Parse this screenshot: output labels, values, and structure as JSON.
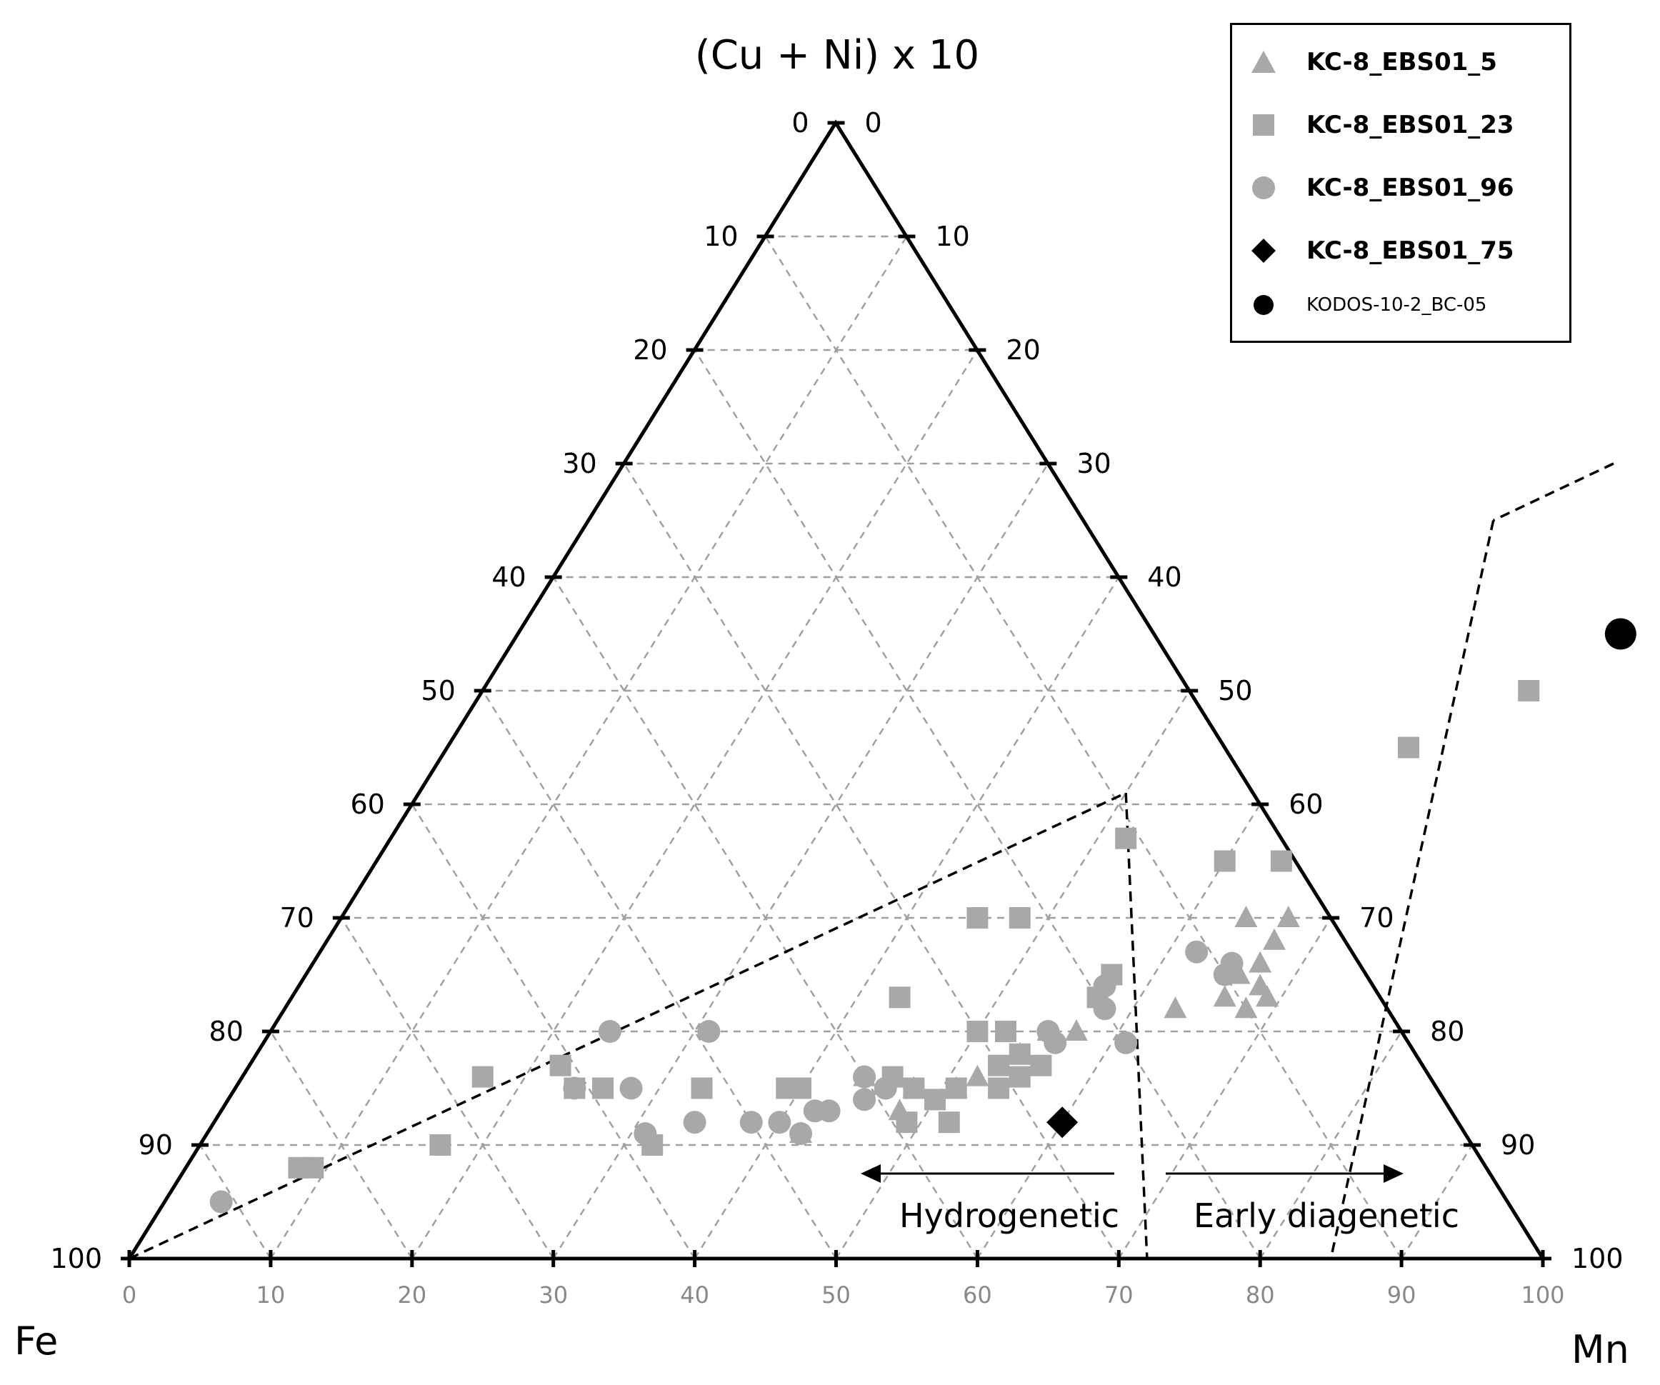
{
  "colors": {
    "gray": "#a8a8a8",
    "black": "#000000",
    "grid": "#a0a0a0"
  },
  "chart_data": {
    "type": "scatter",
    "subtype": "ternary",
    "labels": {
      "top": "(Cu + Ni) x 10",
      "bottom_left": "Fe",
      "bottom_right": "Mn"
    },
    "left_ticks": [
      "0",
      "10",
      "20",
      "30",
      "40",
      "50",
      "60",
      "70",
      "80",
      "90",
      "100"
    ],
    "right_ticks": [
      "100",
      "90",
      "80",
      "70",
      "60",
      "50",
      "40",
      "30",
      "20",
      "10",
      "0"
    ],
    "bottom_ticks": [
      "0",
      "10",
      "20",
      "30",
      "40",
      "50",
      "60",
      "70",
      "80",
      "90",
      "100"
    ],
    "annotations": {
      "hydrogenetic": "Hydrogenetic",
      "early_diagenetic": "Early diagenetic"
    },
    "grid": true,
    "legend_position": "top-right",
    "coordinate_note": "points as [Mn_axis_value, CuNi_x10_value]",
    "series": [
      {
        "name": "KC-8_EBS01_5",
        "marker": "triangle",
        "color": "#a8a8a8",
        "points": [
          [
            64,
            30
          ],
          [
            67,
            30
          ],
          [
            67,
            28
          ],
          [
            67,
            26
          ],
          [
            66,
            23
          ],
          [
            68,
            24
          ],
          [
            66,
            25
          ],
          [
            57,
            20
          ],
          [
            55,
            20
          ],
          [
            54,
            18
          ],
          [
            52,
            16
          ],
          [
            51,
            15
          ],
          [
            48,
            15
          ],
          [
            48,
            13
          ],
          [
            44,
            16
          ],
          [
            42,
            11
          ],
          [
            69,
            23
          ],
          [
            68,
            22
          ],
          [
            63,
            22
          ]
        ]
      },
      {
        "name": "KC-8_EBS01_23",
        "marker": "square",
        "color": "#a8a8a8",
        "points": [
          [
            74,
            50
          ],
          [
            68,
            45
          ],
          [
            52,
            37
          ],
          [
            60,
            35
          ],
          [
            64,
            35
          ],
          [
            45,
            30
          ],
          [
            48,
            30
          ],
          [
            57,
            25
          ],
          [
            57,
            23
          ],
          [
            43,
            23
          ],
          [
            50,
            20
          ],
          [
            52,
            20
          ],
          [
            54,
            18
          ],
          [
            56,
            17
          ],
          [
            53,
            17
          ],
          [
            46,
            16
          ],
          [
            48,
            15
          ],
          [
            51,
            15
          ],
          [
            54,
            15
          ],
          [
            50,
            14
          ],
          [
            55,
            16
          ],
          [
            49,
            12
          ],
          [
            52,
            12
          ],
          [
            40,
            15
          ],
          [
            39,
            15
          ],
          [
            33,
            15
          ],
          [
            26,
            15
          ],
          [
            24,
            15
          ],
          [
            22,
            17
          ],
          [
            17,
            16
          ],
          [
            32,
            10
          ],
          [
            17,
            10
          ],
          [
            9,
            8
          ],
          [
            8,
            8
          ]
        ]
      },
      {
        "name": "KC-8_EBS01_96",
        "marker": "circle",
        "color": "#a8a8a8",
        "points": [
          [
            62,
            27
          ],
          [
            65,
            26
          ],
          [
            65,
            25
          ],
          [
            57,
            24
          ],
          [
            58,
            22
          ],
          [
            55,
            20
          ],
          [
            61,
            19
          ],
          [
            56,
            19
          ],
          [
            44,
            16
          ],
          [
            45,
            14
          ],
          [
            46,
            15
          ],
          [
            43,
            13
          ],
          [
            42,
            13
          ],
          [
            42,
            11
          ],
          [
            40,
            12
          ],
          [
            38,
            12
          ],
          [
            34,
            12
          ],
          [
            31,
            11
          ],
          [
            28,
            15
          ],
          [
            24,
            15
          ],
          [
            31,
            20
          ],
          [
            24,
            20
          ],
          [
            4,
            5
          ]
        ]
      },
      {
        "name": "KC-8_EBS01_75",
        "marker": "diamond",
        "color": "#000000",
        "points": [
          [
            60,
            12
          ]
        ]
      },
      {
        "name": "KODOS-10-2_BC-05",
        "marker": "circle",
        "color": "#000000",
        "points": [
          [
            78,
            55
          ]
        ]
      }
    ],
    "legend": [
      {
        "label": "KC-8_EBS01_5",
        "marker": "triangle",
        "color": "#a8a8a8",
        "small": false
      },
      {
        "label": "KC-8_EBS01_23",
        "marker": "square",
        "color": "#a8a8a8",
        "small": false
      },
      {
        "label": "KC-8_EBS01_96",
        "marker": "circle",
        "color": "#a8a8a8",
        "small": false
      },
      {
        "label": "KC-8_EBS01_75",
        "marker": "diamond",
        "color": "#000000",
        "small": false
      },
      {
        "label": "KODOS-10-2_BC-05",
        "marker": "circle",
        "color": "#000000",
        "small": true
      }
    ]
  }
}
